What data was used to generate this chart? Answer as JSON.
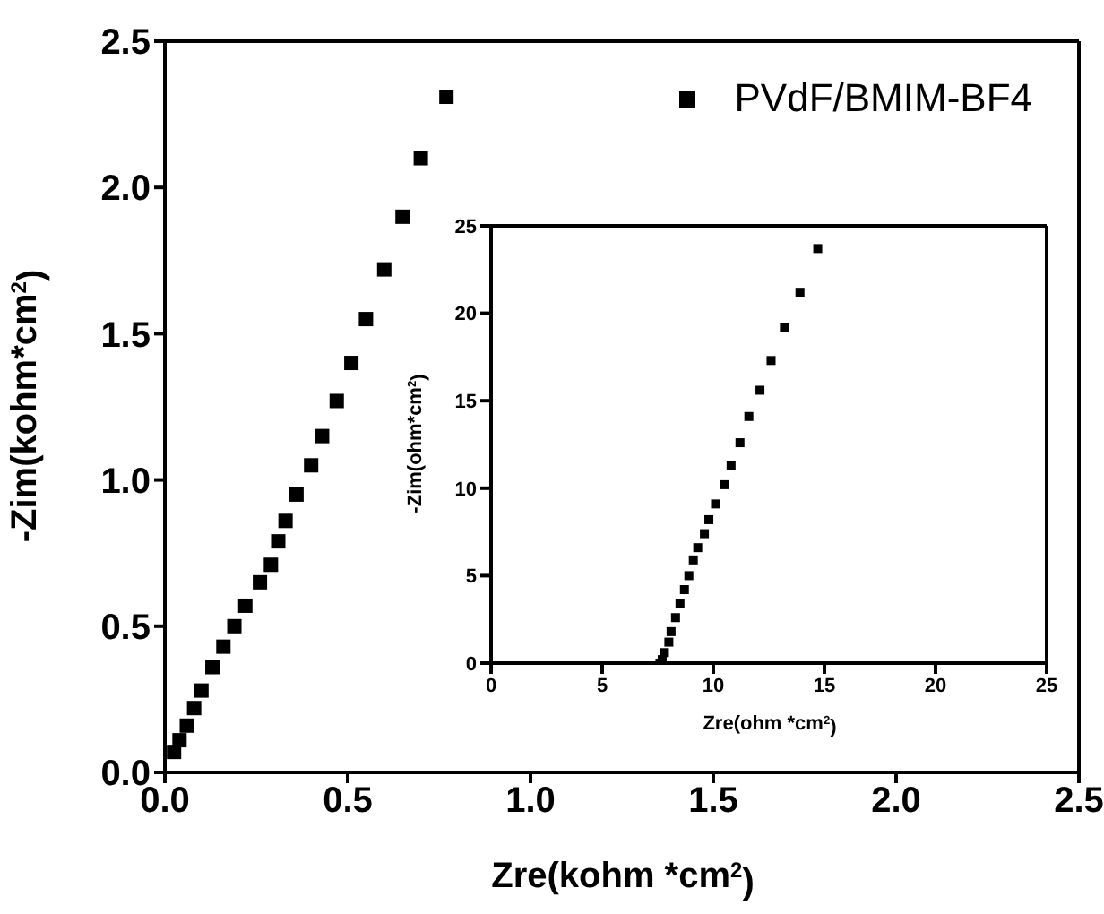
{
  "chart_data": [
    {
      "type": "scatter",
      "xlabel": "Zre(kohm *cm$^{2}$)",
      "ylabel": "-Zim(kohm*cm$^{2}$)",
      "xlim": [
        0,
        2.5
      ],
      "ylim": [
        0,
        2.5
      ],
      "xticks": [
        {
          "value": 0,
          "label": "0.0"
        },
        0.5,
        {
          "value": 1,
          "label": "1.0"
        },
        1.5,
        {
          "value": 2,
          "label": "2.0"
        },
        2.5
      ],
      "yticks": [
        {
          "value": 0,
          "label": "0.0"
        },
        0.5,
        {
          "value": 1,
          "label": "1.0"
        },
        1.5,
        {
          "value": 2,
          "label": "2.0"
        },
        2.5
      ],
      "marker": "square",
      "legend": "top right",
      "series": [
        {
          "name": "PVdF/BMIM-BF4",
          "color": "#000000",
          "x": [
            0.025,
            0.04,
            0.06,
            0.08,
            0.1,
            0.13,
            0.16,
            0.19,
            0.22,
            0.26,
            0.29,
            0.31,
            0.33,
            0.36,
            0.4,
            0.43,
            0.47,
            0.51,
            0.55,
            0.6,
            0.65,
            0.7,
            0.77
          ],
          "values": [
            0.07,
            0.11,
            0.16,
            0.22,
            0.28,
            0.36,
            0.43,
            0.5,
            0.57,
            0.65,
            0.71,
            0.79,
            0.86,
            0.95,
            1.05,
            1.15,
            1.27,
            1.4,
            1.55,
            1.72,
            1.9,
            2.1,
            2.31
          ]
        }
      ]
    },
    {
      "type": "scatter",
      "xlabel": "Zre(ohm *cm$^{2}$)",
      "ylabel": "-Zim(ohm*cm$^{2}$)",
      "xlim": [
        0,
        25
      ],
      "ylim": [
        0,
        25
      ],
      "xticks": [
        0,
        5,
        10,
        15,
        20,
        25
      ],
      "yticks": [
        0,
        5,
        10,
        15,
        20,
        25
      ],
      "marker": "square",
      "series": [
        {
          "color": "#000000",
          "x": [
            7.6,
            7.7,
            7.8,
            8,
            8.1,
            8.3,
            8.5,
            8.7,
            8.9,
            9.1,
            9.3,
            9.6,
            9.8,
            10.1,
            10.5,
            10.8,
            11.2,
            11.6,
            12.1,
            12.6,
            13.2,
            13.9,
            14.7
          ],
          "values": [
            0,
            0.2,
            0.6,
            1.2,
            1.8,
            2.6,
            3.4,
            4.2,
            5,
            5.9,
            6.6,
            7.4,
            8.2,
            9.1,
            10.2,
            11.3,
            12.6,
            14.1,
            15.6,
            17.3,
            19.2,
            21.2,
            23.7
          ]
        }
      ]
    }
  ]
}
